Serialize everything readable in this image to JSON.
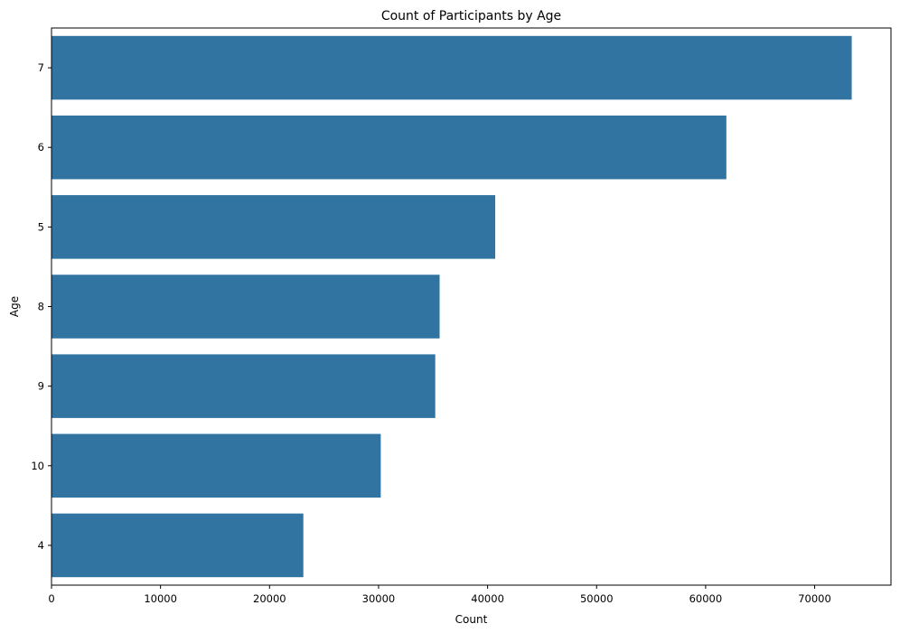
{
  "chart_data": {
    "type": "bar",
    "orientation": "horizontal",
    "title": "Count of Participants by Age",
    "xlabel": "Count",
    "ylabel": "Age",
    "categories": [
      "7",
      "6",
      "5",
      "8",
      "9",
      "10",
      "4"
    ],
    "values": [
      73400,
      61900,
      40700,
      35600,
      35200,
      30200,
      23100
    ],
    "xlim": [
      0,
      77000
    ],
    "xticks": [
      0,
      10000,
      20000,
      30000,
      40000,
      50000,
      60000,
      70000
    ],
    "grid": false,
    "legend": false,
    "bar_color": "#3274a1"
  }
}
